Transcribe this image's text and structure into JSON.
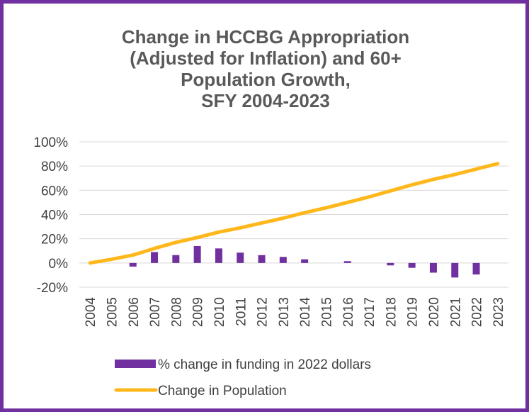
{
  "chart_data": {
    "type": "bar+line",
    "title_lines": [
      "Change in HCCBG Appropriation",
      "(Adjusted for Inflation) and 60+",
      "Population Growth,",
      "SFY 2004-2023"
    ],
    "categories": [
      "2004",
      "2005",
      "2006",
      "2007",
      "2008",
      "2009",
      "2010",
      "2011",
      "2012",
      "2013",
      "2014",
      "2015",
      "2016",
      "2017",
      "2018",
      "2019",
      "2020",
      "2021",
      "2022",
      "2023"
    ],
    "y_ticks": [
      "100%",
      "80%",
      "60%",
      "40%",
      "20%",
      "0%",
      "-20%"
    ],
    "ylim": [
      -0.2,
      1.0
    ],
    "grid": true,
    "legend_position": "bottom",
    "series": [
      {
        "name": "% change in funding in 2022 dollars",
        "kind": "bar",
        "color": "#7030A0",
        "values": [
          0,
          0,
          -0.03,
          0.09,
          0.065,
          0.14,
          0.12,
          0.085,
          0.065,
          0.05,
          0.03,
          0,
          0.015,
          0,
          -0.02,
          -0.04,
          -0.08,
          -0.12,
          -0.095,
          null
        ]
      },
      {
        "name": "Change in Population",
        "kind": "line",
        "color": "#FFB81C",
        "values": [
          0,
          0.03,
          0.065,
          0.12,
          0.17,
          0.21,
          0.255,
          0.29,
          0.33,
          0.37,
          0.415,
          0.455,
          0.5,
          0.545,
          0.595,
          0.645,
          0.69,
          0.73,
          0.775,
          0.82
        ]
      }
    ]
  }
}
